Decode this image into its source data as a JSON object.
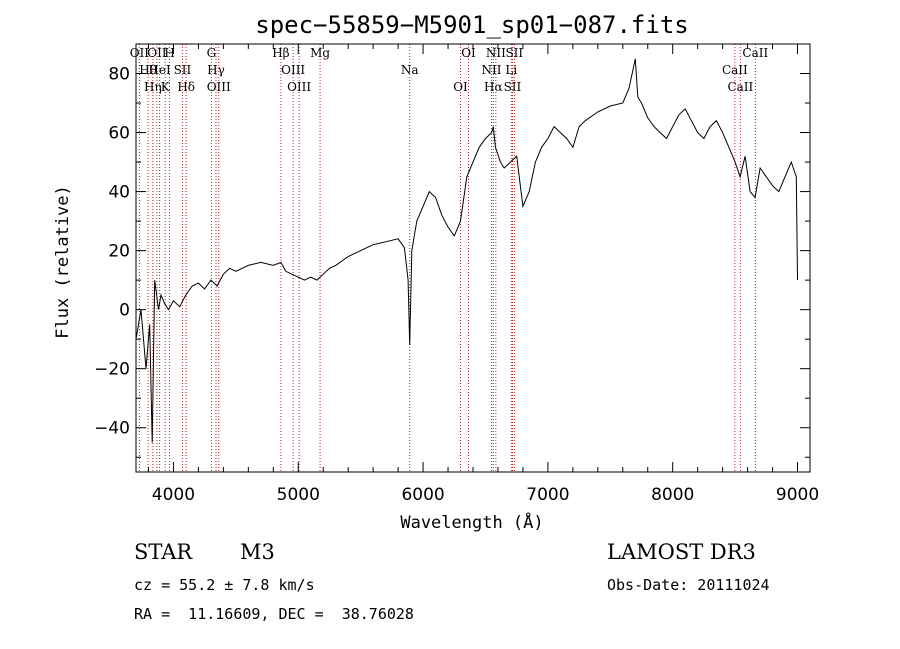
{
  "chart_data": {
    "type": "line",
    "title": "spec−55859−M5901_sp01−087.fits",
    "xlabel": "Wavelength (Å)",
    "ylabel": "Flux (relative)",
    "xlim": [
      3700,
      9100
    ],
    "ylim": [
      -55,
      90
    ],
    "xticks": [
      4000,
      5000,
      6000,
      7000,
      8000,
      9000
    ],
    "yticks": [
      -40,
      -20,
      0,
      20,
      40,
      60,
      80
    ],
    "grid": false,
    "series": [
      {
        "name": "spectrum",
        "x": [
          3700,
          3740,
          3780,
          3810,
          3830,
          3850,
          3880,
          3900,
          3930,
          3960,
          4000,
          4050,
          4100,
          4150,
          4200,
          4250,
          4300,
          4350,
          4400,
          4450,
          4500,
          4600,
          4700,
          4800,
          4861,
          4900,
          4950,
          5000,
          5050,
          5100,
          5150,
          5200,
          5250,
          5300,
          5400,
          5500,
          5600,
          5700,
          5800,
          5850,
          5880,
          5893,
          5910,
          5950,
          6000,
          6050,
          6100,
          6150,
          6200,
          6250,
          6300,
          6350,
          6400,
          6450,
          6500,
          6550,
          6563,
          6580,
          6620,
          6650,
          6700,
          6750,
          6800,
          6850,
          6900,
          6950,
          7000,
          7050,
          7100,
          7150,
          7200,
          7250,
          7300,
          7400,
          7500,
          7600,
          7650,
          7700,
          7720,
          7750,
          7800,
          7850,
          7900,
          7950,
          8000,
          8050,
          8100,
          8150,
          8200,
          8250,
          8300,
          8350,
          8400,
          8450,
          8500,
          8540,
          8580,
          8620,
          8660,
          8700,
          8750,
          8800,
          8850,
          8900,
          8950,
          8990,
          9000
        ],
        "values": [
          -10,
          0,
          -20,
          -5,
          -45,
          10,
          0,
          5,
          2,
          0,
          3,
          1,
          5,
          8,
          9,
          7,
          10,
          8,
          12,
          14,
          13,
          15,
          16,
          15,
          16,
          13,
          12,
          11,
          10,
          11,
          10,
          12,
          14,
          15,
          18,
          20,
          22,
          23,
          24,
          21,
          10,
          -12,
          20,
          30,
          35,
          40,
          38,
          32,
          28,
          25,
          30,
          45,
          50,
          55,
          58,
          60,
          62,
          55,
          50,
          48,
          50,
          52,
          35,
          40,
          50,
          55,
          58,
          62,
          60,
          58,
          55,
          62,
          64,
          67,
          69,
          70,
          75,
          85,
          72,
          70,
          65,
          62,
          60,
          58,
          62,
          66,
          68,
          64,
          60,
          58,
          62,
          64,
          60,
          55,
          50,
          45,
          52,
          40,
          38,
          48,
          45,
          42,
          40,
          45,
          50,
          45,
          10
        ]
      }
    ],
    "emission_line_markers": [
      {
        "wl": 3727,
        "label": "OII"
      },
      {
        "wl": 3797,
        "label": "Hθ"
      },
      {
        "wl": 3835,
        "label": "Hη"
      },
      {
        "wl": 3868,
        "label": "OII"
      },
      {
        "wl": 3889,
        "label": "HeI"
      },
      {
        "wl": 3934,
        "label": "K"
      },
      {
        "wl": 3969,
        "label": "H"
      },
      {
        "wl": 4072,
        "label": "SII"
      },
      {
        "wl": 4102,
        "label": "Hδ"
      },
      {
        "wl": 4304,
        "label": "G"
      },
      {
        "wl": 4341,
        "label": "Hγ"
      },
      {
        "wl": 4363,
        "label": "OIII"
      },
      {
        "wl": 4861,
        "label": "Hβ"
      },
      {
        "wl": 4959,
        "label": "OIII"
      },
      {
        "wl": 5007,
        "label": "OIII"
      },
      {
        "wl": 5175,
        "label": "Mg"
      },
      {
        "wl": 5893,
        "label": "Na"
      },
      {
        "wl": 6300,
        "label": "OI"
      },
      {
        "wl": 6364,
        "label": "OI"
      },
      {
        "wl": 6548,
        "label": "NII"
      },
      {
        "wl": 6563,
        "label": "Hα"
      },
      {
        "wl": 6583,
        "label": "NII"
      },
      {
        "wl": 6707,
        "label": "Li"
      },
      {
        "wl": 6716,
        "label": "SII"
      },
      {
        "wl": 6731,
        "label": "SII"
      },
      {
        "wl": 8498,
        "label": "CaII"
      },
      {
        "wl": 8542,
        "label": "CaII"
      },
      {
        "wl": 8662,
        "label": "CaII"
      }
    ]
  },
  "footer": {
    "class_label": "STAR",
    "subclass": "M3",
    "survey": "LAMOST DR3",
    "cz": "cz = 55.2 ± 7.8 km/s",
    "obs_date": "Obs-Date: 20111024",
    "coords": "RA =  11.16609, DEC =  38.76028"
  },
  "colors": {
    "spectrum": "#000000",
    "markers": "#b22222",
    "axes": "#000000"
  }
}
